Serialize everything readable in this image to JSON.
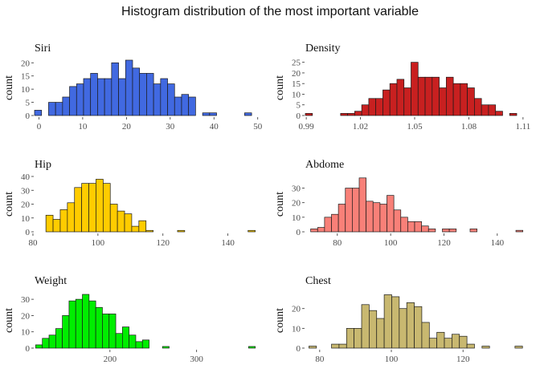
{
  "title": "Histogram distribution of the most important variable",
  "chart_data": [
    {
      "type": "bar",
      "title": "Siri",
      "xlabel": "",
      "ylabel": "count",
      "color": "#4169E1",
      "xlim": [
        -1.0,
        49.5
      ],
      "ylim": [
        0,
        21
      ],
      "xticks": [
        0,
        10,
        20,
        30,
        40,
        50
      ],
      "xtick_labels": [
        "0",
        "10",
        "20",
        "30",
        "40",
        "50"
      ],
      "yticks": [
        0,
        5,
        10,
        15,
        20
      ],
      "ytick_labels": [
        "0",
        "5",
        "10",
        "15",
        "20"
      ],
      "bins": [
        {
          "x0": -1.0,
          "x1": 0.6,
          "count": 2
        },
        {
          "x0": 0.6,
          "x1": 2.2,
          "count": 0
        },
        {
          "x0": 2.2,
          "x1": 3.8,
          "count": 5
        },
        {
          "x0": 3.8,
          "x1": 5.4,
          "count": 5
        },
        {
          "x0": 5.4,
          "x1": 7.0,
          "count": 7
        },
        {
          "x0": 7.0,
          "x1": 8.6,
          "count": 11
        },
        {
          "x0": 8.6,
          "x1": 10.2,
          "count": 12
        },
        {
          "x0": 10.2,
          "x1": 11.8,
          "count": 14
        },
        {
          "x0": 11.8,
          "x1": 13.4,
          "count": 16
        },
        {
          "x0": 13.4,
          "x1": 15.0,
          "count": 14
        },
        {
          "x0": 15.0,
          "x1": 16.6,
          "count": 14
        },
        {
          "x0": 16.6,
          "x1": 18.2,
          "count": 20
        },
        {
          "x0": 18.2,
          "x1": 19.8,
          "count": 14
        },
        {
          "x0": 19.8,
          "x1": 21.4,
          "count": 21
        },
        {
          "x0": 21.4,
          "x1": 23.0,
          "count": 18
        },
        {
          "x0": 23.0,
          "x1": 24.6,
          "count": 16
        },
        {
          "x0": 24.6,
          "x1": 26.2,
          "count": 16
        },
        {
          "x0": 26.2,
          "x1": 27.8,
          "count": 12
        },
        {
          "x0": 27.8,
          "x1": 29.4,
          "count": 14
        },
        {
          "x0": 29.4,
          "x1": 31.0,
          "count": 12
        },
        {
          "x0": 31.0,
          "x1": 32.6,
          "count": 7
        },
        {
          "x0": 32.6,
          "x1": 34.2,
          "count": 8
        },
        {
          "x0": 34.2,
          "x1": 35.8,
          "count": 7
        },
        {
          "x0": 35.8,
          "x1": 37.4,
          "count": 0
        },
        {
          "x0": 37.4,
          "x1": 39.0,
          "count": 1
        },
        {
          "x0": 39.0,
          "x1": 40.6,
          "count": 1
        },
        {
          "x0": 40.6,
          "x1": 42.2,
          "count": 0
        },
        {
          "x0": 42.2,
          "x1": 43.8,
          "count": 0
        },
        {
          "x0": 43.8,
          "x1": 45.4,
          "count": 0
        },
        {
          "x0": 45.4,
          "x1": 47.0,
          "count": 0
        },
        {
          "x0": 47.0,
          "x1": 48.6,
          "count": 1
        }
      ]
    },
    {
      "type": "bar",
      "title": "Density",
      "xlabel": "",
      "ylabel": "count",
      "color": "#C82020",
      "xlim": [
        0.9895,
        1.1105
      ],
      "ylim": [
        0,
        26
      ],
      "xticks": [
        0.99,
        1.02,
        1.05,
        1.08,
        1.11
      ],
      "xtick_labels": [
        "0.99",
        "1.02",
        "1.05",
        "1.08",
        "1.11"
      ],
      "yticks": [
        0,
        5,
        10,
        15,
        20,
        25
      ],
      "ytick_labels": [
        "0",
        "5",
        "10",
        "15",
        "20",
        "25"
      ],
      "bins": [
        {
          "x0": 0.9895,
          "x1": 0.9934,
          "count": 1
        },
        {
          "x0": 0.9934,
          "x1": 0.9973,
          "count": 0
        },
        {
          "x0": 0.9973,
          "x1": 1.0012,
          "count": 0
        },
        {
          "x0": 1.0012,
          "x1": 1.0051,
          "count": 0
        },
        {
          "x0": 1.0051,
          "x1": 1.009,
          "count": 0
        },
        {
          "x0": 1.009,
          "x1": 1.0129,
          "count": 1
        },
        {
          "x0": 1.0129,
          "x1": 1.0168,
          "count": 1
        },
        {
          "x0": 1.0168,
          "x1": 1.0207,
          "count": 2
        },
        {
          "x0": 1.0207,
          "x1": 1.0246,
          "count": 5
        },
        {
          "x0": 1.0246,
          "x1": 1.0285,
          "count": 8
        },
        {
          "x0": 1.0285,
          "x1": 1.0324,
          "count": 8
        },
        {
          "x0": 1.0324,
          "x1": 1.0363,
          "count": 12
        },
        {
          "x0": 1.0363,
          "x1": 1.0402,
          "count": 15
        },
        {
          "x0": 1.0402,
          "x1": 1.0441,
          "count": 17
        },
        {
          "x0": 1.0441,
          "x1": 1.048,
          "count": 13
        },
        {
          "x0": 1.048,
          "x1": 1.0519,
          "count": 25
        },
        {
          "x0": 1.0519,
          "x1": 1.0558,
          "count": 18
        },
        {
          "x0": 1.0558,
          "x1": 1.0597,
          "count": 18
        },
        {
          "x0": 1.0597,
          "x1": 1.0636,
          "count": 18
        },
        {
          "x0": 1.0636,
          "x1": 1.0675,
          "count": 13
        },
        {
          "x0": 1.0675,
          "x1": 1.0714,
          "count": 18
        },
        {
          "x0": 1.0714,
          "x1": 1.0753,
          "count": 15
        },
        {
          "x0": 1.0753,
          "x1": 1.0792,
          "count": 15
        },
        {
          "x0": 1.0792,
          "x1": 1.0831,
          "count": 13
        },
        {
          "x0": 1.0831,
          "x1": 1.087,
          "count": 8
        },
        {
          "x0": 1.087,
          "x1": 1.0909,
          "count": 5
        },
        {
          "x0": 1.0909,
          "x1": 1.0948,
          "count": 5
        },
        {
          "x0": 1.0948,
          "x1": 1.0987,
          "count": 2
        },
        {
          "x0": 1.0987,
          "x1": 1.1026,
          "count": 0
        },
        {
          "x0": 1.1026,
          "x1": 1.1065,
          "count": 1
        },
        {
          "x0": 1.1065,
          "x1": 1.1105,
          "count": 0
        }
      ]
    },
    {
      "type": "bar",
      "title": "Hip",
      "xlabel": "",
      "ylabel": "count",
      "color": "#FFCC00",
      "xlim": [
        80.5,
        148.5
      ],
      "ylim": [
        0,
        40
      ],
      "xticks": [
        80,
        100,
        120,
        140
      ],
      "xtick_labels": [
        "80",
        "100",
        "120",
        "140"
      ],
      "yticks": [
        0,
        10,
        20,
        30,
        40
      ],
      "ytick_labels": [
        "0",
        "10",
        "20",
        "30",
        "40"
      ],
      "bins": [
        {
          "x0": 84.0,
          "x1": 86.2,
          "count": 12
        },
        {
          "x0": 86.2,
          "x1": 88.4,
          "count": 9
        },
        {
          "x0": 88.4,
          "x1": 90.6,
          "count": 16
        },
        {
          "x0": 90.6,
          "x1": 92.8,
          "count": 21
        },
        {
          "x0": 92.8,
          "x1": 95.0,
          "count": 32
        },
        {
          "x0": 95.0,
          "x1": 97.2,
          "count": 35
        },
        {
          "x0": 97.2,
          "x1": 99.4,
          "count": 35
        },
        {
          "x0": 99.4,
          "x1": 101.6,
          "count": 38
        },
        {
          "x0": 101.6,
          "x1": 103.8,
          "count": 35
        },
        {
          "x0": 103.8,
          "x1": 106.0,
          "count": 20
        },
        {
          "x0": 106.0,
          "x1": 108.2,
          "count": 15
        },
        {
          "x0": 108.2,
          "x1": 110.4,
          "count": 13
        },
        {
          "x0": 110.4,
          "x1": 112.6,
          "count": 4
        },
        {
          "x0": 112.6,
          "x1": 114.8,
          "count": 8
        },
        {
          "x0": 114.8,
          "x1": 117.0,
          "count": 1
        },
        {
          "x0": 117.0,
          "x1": 119.2,
          "count": 0
        },
        {
          "x0": 124.5,
          "x1": 126.7,
          "count": 1
        },
        {
          "x0": 146.2,
          "x1": 148.4,
          "count": 1
        }
      ]
    },
    {
      "type": "bar",
      "title": "Abdome",
      "xlabel": "",
      "ylabel": "count",
      "color": "#F88078",
      "xlim": [
        68,
        150
      ],
      "ylim": [
        0,
        38
      ],
      "xticks": [
        80,
        100,
        120,
        140
      ],
      "xtick_labels": [
        "80",
        "100",
        "120",
        "140"
      ],
      "yticks": [
        0,
        10,
        20,
        30
      ],
      "ytick_labels": [
        "0",
        "10",
        "20",
        "30"
      ],
      "bins": [
        {
          "x0": 70.0,
          "x1": 72.6,
          "count": 2
        },
        {
          "x0": 72.6,
          "x1": 75.2,
          "count": 3
        },
        {
          "x0": 75.2,
          "x1": 77.8,
          "count": 10
        },
        {
          "x0": 77.8,
          "x1": 80.4,
          "count": 12
        },
        {
          "x0": 80.4,
          "x1": 83.0,
          "count": 19
        },
        {
          "x0": 83.0,
          "x1": 85.6,
          "count": 30
        },
        {
          "x0": 85.6,
          "x1": 88.2,
          "count": 30
        },
        {
          "x0": 88.2,
          "x1": 90.8,
          "count": 37
        },
        {
          "x0": 90.8,
          "x1": 93.4,
          "count": 21
        },
        {
          "x0": 93.4,
          "x1": 96.0,
          "count": 20
        },
        {
          "x0": 96.0,
          "x1": 98.6,
          "count": 19
        },
        {
          "x0": 98.6,
          "x1": 101.2,
          "count": 25
        },
        {
          "x0": 101.2,
          "x1": 103.8,
          "count": 15
        },
        {
          "x0": 103.8,
          "x1": 106.4,
          "count": 10
        },
        {
          "x0": 106.4,
          "x1": 109.0,
          "count": 7
        },
        {
          "x0": 109.0,
          "x1": 111.6,
          "count": 7
        },
        {
          "x0": 111.6,
          "x1": 114.2,
          "count": 4
        },
        {
          "x0": 114.2,
          "x1": 116.8,
          "count": 2
        },
        {
          "x0": 116.8,
          "x1": 119.4,
          "count": 0
        },
        {
          "x0": 119.4,
          "x1": 122.0,
          "count": 2
        },
        {
          "x0": 122.0,
          "x1": 124.6,
          "count": 2
        },
        {
          "x0": 124.6,
          "x1": 127.2,
          "count": 0
        },
        {
          "x0": 127.2,
          "x1": 129.8,
          "count": 0
        },
        {
          "x0": 129.8,
          "x1": 132.4,
          "count": 2
        },
        {
          "x0": 147.0,
          "x1": 149.6,
          "count": 1
        }
      ]
    },
    {
      "type": "bar",
      "title": "Weight",
      "xlabel": "",
      "ylabel": "count",
      "color": "#00EE00",
      "xlim": [
        113,
        368
      ],
      "ylim": [
        0,
        34
      ],
      "xticks": [
        200,
        300
      ],
      "xtick_labels": [
        "200",
        "300"
      ],
      "yticks": [
        0,
        10,
        20,
        30
      ],
      "ytick_labels": [
        "0",
        "10",
        "20",
        "30"
      ],
      "bins": [
        {
          "x0": 114.3,
          "x1": 122.0,
          "count": 2
        },
        {
          "x0": 122.0,
          "x1": 129.7,
          "count": 6
        },
        {
          "x0": 129.7,
          "x1": 137.4,
          "count": 8
        },
        {
          "x0": 137.4,
          "x1": 145.1,
          "count": 12
        },
        {
          "x0": 145.1,
          "x1": 152.8,
          "count": 20
        },
        {
          "x0": 152.8,
          "x1": 160.5,
          "count": 29
        },
        {
          "x0": 160.5,
          "x1": 168.2,
          "count": 30
        },
        {
          "x0": 168.2,
          "x1": 175.9,
          "count": 33
        },
        {
          "x0": 175.9,
          "x1": 183.6,
          "count": 29
        },
        {
          "x0": 183.6,
          "x1": 191.3,
          "count": 25
        },
        {
          "x0": 191.3,
          "x1": 199.0,
          "count": 21
        },
        {
          "x0": 199.0,
          "x1": 206.7,
          "count": 21
        },
        {
          "x0": 206.7,
          "x1": 214.4,
          "count": 9
        },
        {
          "x0": 214.4,
          "x1": 222.1,
          "count": 13
        },
        {
          "x0": 222.1,
          "x1": 229.8,
          "count": 8
        },
        {
          "x0": 229.8,
          "x1": 237.5,
          "count": 4
        },
        {
          "x0": 237.5,
          "x1": 245.2,
          "count": 5
        },
        {
          "x0": 245.2,
          "x1": 252.9,
          "count": 0
        },
        {
          "x0": 252.9,
          "x1": 260.6,
          "count": 0
        },
        {
          "x0": 260.6,
          "x1": 268.3,
          "count": 1
        },
        {
          "x0": 360.0,
          "x1": 367.7,
          "count": 1
        }
      ]
    },
    {
      "type": "bar",
      "title": "Chest",
      "xlabel": "",
      "ylabel": "count",
      "color": "#C8B870",
      "xlim": [
        76,
        137
      ],
      "ylim": [
        0,
        28
      ],
      "xticks": [
        80,
        100,
        120
      ],
      "xtick_labels": [
        "80",
        "100",
        "120"
      ],
      "yticks": [
        0,
        10,
        20
      ],
      "ytick_labels": [
        "0",
        "10",
        "20"
      ],
      "bins": [
        {
          "x0": 77.0,
          "x1": 79.1,
          "count": 1
        },
        {
          "x0": 79.1,
          "x1": 81.2,
          "count": 0
        },
        {
          "x0": 81.2,
          "x1": 83.3,
          "count": 0
        },
        {
          "x0": 83.3,
          "x1": 85.4,
          "count": 2
        },
        {
          "x0": 85.4,
          "x1": 87.5,
          "count": 2
        },
        {
          "x0": 87.5,
          "x1": 89.6,
          "count": 10
        },
        {
          "x0": 89.6,
          "x1": 91.7,
          "count": 10
        },
        {
          "x0": 91.7,
          "x1": 93.8,
          "count": 22
        },
        {
          "x0": 93.8,
          "x1": 95.9,
          "count": 19
        },
        {
          "x0": 95.9,
          "x1": 98.0,
          "count": 15
        },
        {
          "x0": 98.0,
          "x1": 100.1,
          "count": 27
        },
        {
          "x0": 100.1,
          "x1": 102.2,
          "count": 26
        },
        {
          "x0": 102.2,
          "x1": 104.3,
          "count": 20
        },
        {
          "x0": 104.3,
          "x1": 106.4,
          "count": 23
        },
        {
          "x0": 106.4,
          "x1": 108.5,
          "count": 21
        },
        {
          "x0": 108.5,
          "x1": 110.6,
          "count": 13
        },
        {
          "x0": 110.6,
          "x1": 112.7,
          "count": 5
        },
        {
          "x0": 112.7,
          "x1": 114.8,
          "count": 8
        },
        {
          "x0": 114.8,
          "x1": 116.9,
          "count": 5
        },
        {
          "x0": 116.9,
          "x1": 119.0,
          "count": 7
        },
        {
          "x0": 119.0,
          "x1": 121.1,
          "count": 6
        },
        {
          "x0": 121.1,
          "x1": 123.2,
          "count": 2
        },
        {
          "x0": 123.2,
          "x1": 125.3,
          "count": 0
        },
        {
          "x0": 125.3,
          "x1": 127.4,
          "count": 1
        },
        {
          "x0": 127.4,
          "x1": 129.5,
          "count": 0
        },
        {
          "x0": 129.5,
          "x1": 131.6,
          "count": 0
        },
        {
          "x0": 134.5,
          "x1": 136.6,
          "count": 1
        }
      ]
    }
  ]
}
